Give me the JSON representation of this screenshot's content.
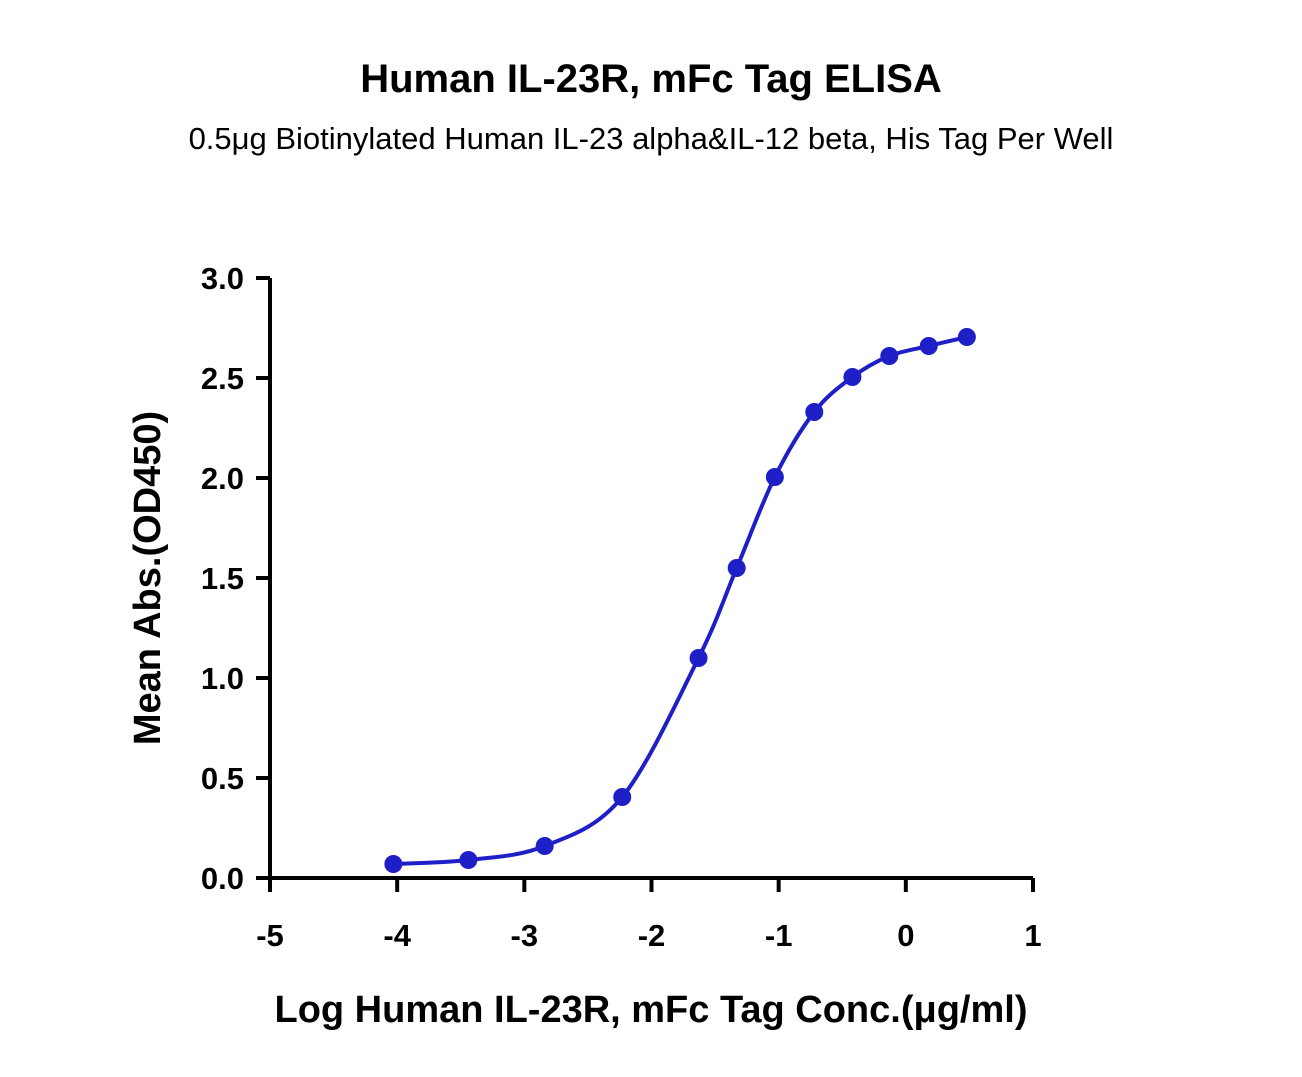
{
  "chart_data": {
    "type": "line",
    "title": "Human IL-23R, mFc Tag ELISA",
    "subtitle": "0.5μg Biotinylated Human IL-23 alpha&IL-12 beta, His Tag Per Well",
    "xlabel": "Log Human IL-23R, mFc Tag Conc.(μg/ml)",
    "ylabel": "Mean Abs.(OD450)",
    "xlim": [
      -5,
      1
    ],
    "ylim": [
      0,
      3.0
    ],
    "xticks": [
      "-5",
      "-4",
      "-3",
      "-2",
      "-1",
      "0",
      "1"
    ],
    "yticks": [
      "0.0",
      "0.5",
      "1.0",
      "1.5",
      "2.0",
      "2.5",
      "3.0"
    ],
    "grid": false,
    "series": [
      {
        "name": "Human IL-23R, mFc Tag",
        "color": "#1f1fc8",
        "x": [
          -4.03,
          -3.44,
          -2.84,
          -2.23,
          -1.63,
          -1.33,
          -1.03,
          -0.72,
          -0.42,
          -0.13,
          0.18,
          0.48
        ],
        "y": [
          0.07,
          0.09,
          0.16,
          0.405,
          1.1,
          1.55,
          2.005,
          2.33,
          2.505,
          2.61,
          2.66,
          2.705
        ]
      }
    ]
  }
}
